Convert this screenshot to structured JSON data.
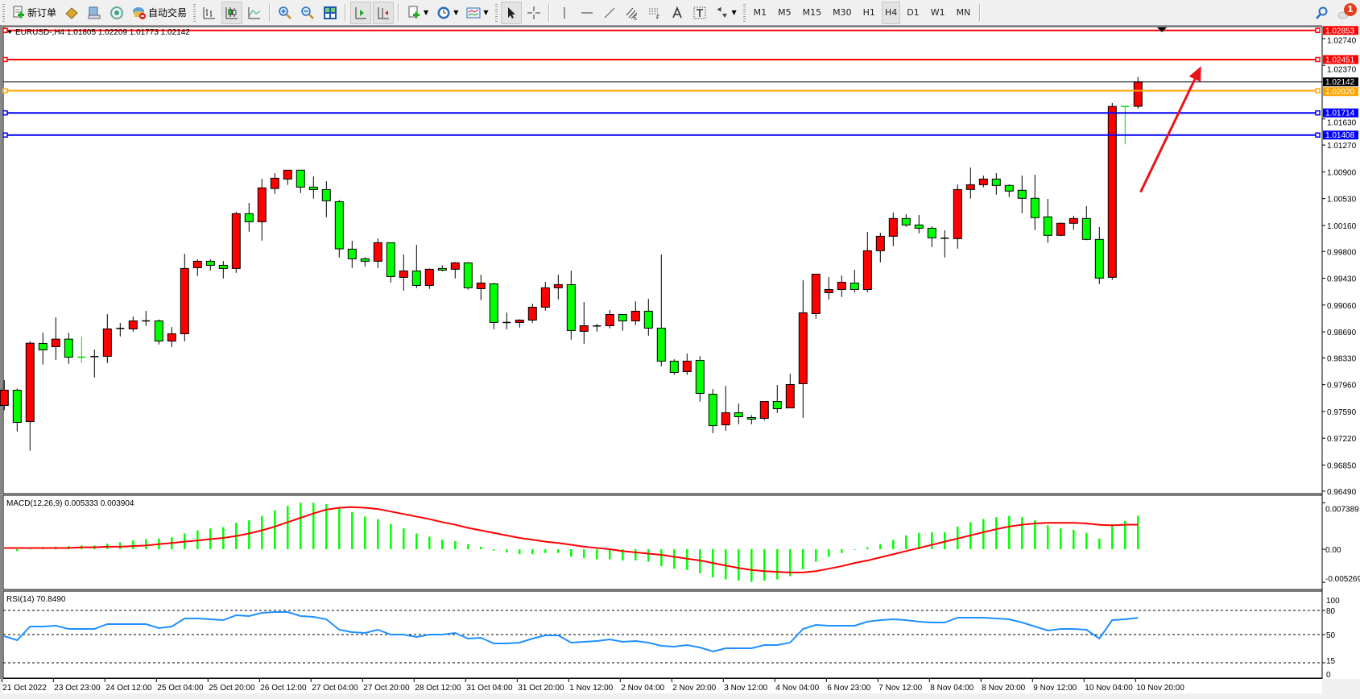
{
  "toolbar": {
    "new_order_label": "新订单",
    "auto_trading_label": "自动交易",
    "timeframes": [
      "M1",
      "M5",
      "M15",
      "M30",
      "H1",
      "H4",
      "D1",
      "W1",
      "MN"
    ],
    "active_timeframe": "H4",
    "notification_count": "1",
    "icons": [
      "new-order-icon",
      "metaeditor-icon",
      "market-watch-icon",
      "signals-icon",
      "auto-trading-icon",
      "bar-chart-icon",
      "candlestick-icon",
      "line-chart-icon",
      "zoom-in-icon",
      "zoom-out-icon",
      "tile-windows-icon",
      "auto-scroll-icon",
      "chart-shift-icon",
      "indicators-icon",
      "periods-icon",
      "templates-icon",
      "cursor-icon",
      "crosshair-icon",
      "vertical-line-icon",
      "horizontal-line-icon",
      "trendline-icon",
      "equidistant-channel-icon",
      "fibonacci-icon",
      "text-icon",
      "text-label-icon",
      "arrows-icon",
      "search-icon",
      "notification-icon"
    ]
  },
  "chart_data": {
    "type": "candlestick",
    "title": "EURUSD-,H4  1.01805 1.02209 1.01773 1.02142",
    "symbol": "EURUSD-",
    "timeframe": "H4",
    "ohlc_columns": [
      "open",
      "high",
      "low",
      "close"
    ],
    "colors": {
      "bull": "#ff0000",
      "bear": "#00ff00",
      "outline": "#000000",
      "background": "#ffffff"
    },
    "price_axis_ticks": [
      "1.02740",
      "1.02370",
      "1.01630",
      "1.01270",
      "1.00900",
      "1.00530",
      "1.00160",
      "0.99800",
      "0.99430",
      "0.99060",
      "0.98690",
      "0.98330",
      "0.97960",
      "0.97590",
      "0.97220",
      "0.96850",
      "0.96490"
    ],
    "price_range": [
      0.9649,
      1.02853
    ],
    "time_labels": [
      "21 Oct 2022",
      "23 Oct 23:00",
      "24 Oct 12:00",
      "25 Oct 04:00",
      "25 Oct 20:00",
      "26 Oct 12:00",
      "27 Oct 04:00",
      "27 Oct 20:00",
      "28 Oct 12:00",
      "31 Oct 04:00",
      "31 Oct 20:00",
      "1 Nov 12:00",
      "2 Nov 04:00",
      "2 Nov 20:00",
      "3 Nov 12:00",
      "4 Nov 04:00",
      "6 Nov 23:00",
      "7 Nov 12:00",
      "8 Nov 04:00",
      "8 Nov 20:00",
      "9 Nov 12:00",
      "10 Nov 04:00",
      "10 Nov 20:00"
    ],
    "time_label_every_n_bars": 4,
    "candles": [
      [
        0.97673,
        0.98025,
        0.97606,
        0.97884
      ],
      [
        0.97884,
        0.97906,
        0.97313,
        0.97439
      ],
      [
        0.9745,
        0.98563,
        0.97049,
        0.98533
      ],
      [
        0.9853,
        0.98678,
        0.98237,
        0.98441
      ],
      [
        0.98485,
        0.98889,
        0.98303,
        0.98589
      ],
      [
        0.98589,
        0.98678,
        0.98248,
        0.9834
      ],
      [
        0.98341,
        0.98622,
        0.98259,
        0.9834
      ],
      [
        0.98348,
        0.98444,
        0.98058,
        0.98348
      ],
      [
        0.98352,
        0.98934,
        0.98259,
        0.9873
      ],
      [
        0.98737,
        0.98812,
        0.98626,
        0.98737
      ],
      [
        0.9873,
        0.98901,
        0.98693,
        0.98841
      ],
      [
        0.98841,
        0.98979,
        0.98771,
        0.98841
      ],
      [
        0.98841,
        0.9886,
        0.98515,
        0.98563
      ],
      [
        0.98563,
        0.98756,
        0.98481,
        0.98663
      ],
      [
        0.98663,
        0.99769,
        0.98559,
        0.99565
      ],
      [
        0.99576,
        0.99691,
        0.99461,
        0.99665
      ],
      [
        0.99665,
        0.99691,
        0.99539,
        0.99609
      ],
      [
        0.99609,
        0.99669,
        0.99427,
        0.99565
      ],
      [
        0.99565,
        1.00348,
        0.99505,
        1.00322
      ],
      [
        1.00322,
        1.0047,
        1.00073,
        1.0021
      ],
      [
        1.0021,
        1.00804,
        0.99951,
        1.00678
      ],
      [
        1.0067,
        1.00882,
        1.00596,
        1.00811
      ],
      [
        1.008,
        1.00923,
        1.00719,
        1.00923
      ],
      [
        1.00923,
        1.00923,
        1.00607,
        1.00689
      ],
      [
        1.00689,
        1.00837,
        1.00529,
        1.00655
      ],
      [
        1.00655,
        1.0077,
        1.00273,
        1.005
      ],
      [
        1.00488,
        1.00511,
        0.99717,
        0.99836
      ],
      [
        0.99832,
        0.99947,
        0.99572,
        0.99698
      ],
      [
        0.99698,
        0.9972,
        0.99594,
        0.99665
      ],
      [
        0.99665,
        0.9998,
        0.99572,
        0.99921
      ],
      [
        0.99921,
        0.99921,
        0.99372,
        0.99453
      ],
      [
        0.99442,
        0.99758,
        0.9926,
        0.99531
      ],
      [
        0.99531,
        0.99891,
        0.99294,
        0.99331
      ],
      [
        0.99331,
        0.99565,
        0.99283,
        0.99554
      ],
      [
        0.99565,
        0.99609,
        0.99528,
        0.99542
      ],
      [
        0.99554,
        0.99654,
        0.99427,
        0.99643
      ],
      [
        0.99643,
        0.99654,
        0.99272,
        0.99298
      ],
      [
        0.99286,
        0.99479,
        0.99127,
        0.99364
      ],
      [
        0.99353,
        0.99364,
        0.98726,
        0.98819
      ],
      [
        0.98819,
        0.98956,
        0.98726,
        0.98819
      ],
      [
        0.98819,
        0.98864,
        0.98748,
        0.98852
      ],
      [
        0.98852,
        0.99079,
        0.98815,
        0.9903
      ],
      [
        0.9903,
        0.99379,
        0.98982,
        0.99298
      ],
      [
        0.99298,
        0.99479,
        0.99138,
        0.99342
      ],
      [
        0.99342,
        0.99535,
        0.98582,
        0.98708
      ],
      [
        0.98697,
        0.99101,
        0.98526,
        0.98774
      ],
      [
        0.98771,
        0.988,
        0.98693,
        0.98771
      ],
      [
        0.98774,
        0.9899,
        0.98737,
        0.9893
      ],
      [
        0.9893,
        0.9893,
        0.98704,
        0.98841
      ],
      [
        0.98841,
        0.99112,
        0.98782,
        0.98975
      ],
      [
        0.98975,
        0.99145,
        0.98637,
        0.98741
      ],
      [
        0.98741,
        0.99758,
        0.98214,
        0.98285
      ],
      [
        0.98285,
        0.98311,
        0.98096,
        0.98129
      ],
      [
        0.9814,
        0.98389,
        0.98096,
        0.98285
      ],
      [
        0.98296,
        0.98355,
        0.97725,
        0.9784
      ],
      [
        0.97828,
        0.97899,
        0.9729,
        0.97394
      ],
      [
        0.97405,
        0.97943,
        0.97324,
        0.97572
      ],
      [
        0.97572,
        0.97699,
        0.97413,
        0.97517
      ],
      [
        0.97506,
        0.97539,
        0.97413,
        0.97483
      ],
      [
        0.97495,
        0.97728,
        0.97469,
        0.97728
      ],
      [
        0.97728,
        0.97955,
        0.97569,
        0.97628
      ],
      [
        0.97639,
        0.9811,
        0.97639,
        0.97962
      ],
      [
        0.97973,
        0.99401,
        0.97502,
        0.98953
      ],
      [
        0.98941,
        0.99487,
        0.98871,
        0.99487
      ],
      [
        0.99231,
        0.99446,
        0.99138,
        0.99275
      ],
      [
        0.99275,
        0.99468,
        0.99171,
        0.99375
      ],
      [
        0.99364,
        0.99546,
        0.99231,
        0.99275
      ],
      [
        0.99275,
        1.00069,
        0.99238,
        0.9981
      ],
      [
        0.9981,
        1.00058,
        0.9965,
        1.0001
      ],
      [
        1.0001,
        1.00336,
        0.99873,
        1.00255
      ],
      [
        1.00255,
        1.00314,
        1.0014,
        1.00166
      ],
      [
        1.00166,
        1.00303,
        1.00051,
        1.00121
      ],
      [
        1.00121,
        1.00147,
        0.99861,
        0.99988
      ],
      [
        0.99984,
        1.00092,
        0.99717,
        0.99984
      ],
      [
        0.99977,
        1.00726,
        0.99839,
        1.00655
      ],
      [
        1.00655,
        1.0096,
        1.00529,
        1.00722
      ],
      [
        1.00722,
        1.00848,
        1.00685,
        1.008
      ],
      [
        1.008,
        1.00882,
        1.00585,
        1.00711
      ],
      [
        1.00712,
        1.00727,
        1.00552,
        1.00634
      ],
      [
        1.00645,
        1.00849,
        1.0033,
        1.00534
      ],
      [
        1.00534,
        1.0086,
        1.00096,
        1.00267
      ],
      [
        1.00278,
        1.00526,
        0.99918,
        1.00022
      ],
      [
        1.00022,
        1.002,
        1.00011,
        1.00189
      ],
      [
        1.00189,
        1.00293,
        1.001,
        1.00255
      ],
      [
        1.00255,
        1.00426,
        0.99955,
        0.99966
      ],
      [
        0.99966,
        1.00137,
        0.9935,
        0.99432
      ],
      [
        0.99443,
        1.01851,
        0.9941,
        1.01803
      ],
      [
        1.01804,
        1.01804,
        1.01279,
        1.01803
      ],
      [
        1.01805,
        1.02209,
        1.01773,
        1.02142
      ]
    ],
    "bid_line": {
      "price": 1.02142,
      "label": "1.02142",
      "color": "#000000"
    },
    "horizontal_lines": [
      {
        "price": 1.02853,
        "label": "1.02853",
        "color": "#ff0000"
      },
      {
        "price": 1.02451,
        "label": "1.02451",
        "color": "#ff0000"
      },
      {
        "price": 1.0202,
        "label": "1.02020",
        "color": "#ffa500"
      },
      {
        "price": 1.01714,
        "label": "1.01714",
        "color": "#0000ff"
      },
      {
        "price": 1.01408,
        "label": "1.01408",
        "color": "#0000ff"
      }
    ],
    "annotation_arrow": {
      "color": "#e8141c",
      "from_bar": 88.2,
      "from_price": 1.0062,
      "to_bar": 92.9,
      "to_price": 1.0236
    },
    "macd": {
      "title": "MACD(12,26,9) 0.005333 0.003904",
      "axis_ticks": [
        "0.007389",
        "0.00",
        "-0.005269"
      ],
      "range": [
        -0.005269,
        0.007389
      ],
      "histogram_color": "#00ff00",
      "signal_color": "#ff0000",
      "histogram": [
        0.0001,
        -0.0003,
        0.0002,
        0.0003,
        0.0004,
        0.0005,
        0.0006,
        0.0006,
        0.0009,
        0.0011,
        0.0014,
        0.0016,
        0.0017,
        0.0019,
        0.0025,
        0.003,
        0.0033,
        0.0035,
        0.0042,
        0.0046,
        0.0053,
        0.0062,
        0.0069,
        0.0074,
        0.0074,
        0.0072,
        0.0066,
        0.0059,
        0.0052,
        0.0048,
        0.004,
        0.0033,
        0.0025,
        0.002,
        0.0015,
        0.0013,
        0.0008,
        0.0004,
        -0.0002,
        -0.0005,
        -0.0008,
        -0.0008,
        -0.0006,
        -0.0006,
        -0.0012,
        -0.0014,
        -0.0016,
        -0.0016,
        -0.0018,
        -0.0018,
        -0.002,
        -0.0027,
        -0.0031,
        -0.0033,
        -0.0038,
        -0.0045,
        -0.0048,
        -0.005,
        -0.0052,
        -0.005,
        -0.0048,
        -0.0043,
        -0.0032,
        -0.002,
        -0.0012,
        -0.0006,
        -0.0001,
        0.0003,
        0.0008,
        0.0015,
        0.0022,
        0.0026,
        0.0027,
        0.0027,
        0.0036,
        0.0043,
        0.0048,
        0.0051,
        0.0053,
        0.0051,
        0.0046,
        0.0038,
        0.0033,
        0.0031,
        0.0026,
        0.0017,
        0.004,
        0.0045,
        0.005333
      ],
      "signal": [
        0.0002,
        0.0002,
        0.0002,
        0.0002,
        0.0002,
        0.0002,
        0.0003,
        0.0003,
        0.0004,
        0.0004,
        0.0005,
        0.0006,
        0.0008,
        0.001,
        0.0012,
        0.0014,
        0.0016,
        0.0018,
        0.0021,
        0.0025,
        0.003,
        0.0036,
        0.0043,
        0.005,
        0.0057,
        0.0063,
        0.0066,
        0.0067,
        0.0066,
        0.0064,
        0.006,
        0.0056,
        0.0052,
        0.0048,
        0.0043,
        0.0039,
        0.0034,
        0.003,
        0.0026,
        0.0022,
        0.0018,
        0.0015,
        0.0012,
        0.001,
        0.0007,
        0.0004,
        0.0002,
        0.0,
        -0.0003,
        -0.0005,
        -0.0007,
        -0.0009,
        -0.0012,
        -0.0015,
        -0.0018,
        -0.0022,
        -0.0026,
        -0.003,
        -0.0033,
        -0.0035,
        -0.0036,
        -0.0037,
        -0.0037,
        -0.0035,
        -0.0031,
        -0.0027,
        -0.0022,
        -0.0018,
        -0.0013,
        -0.0008,
        -0.0003,
        0.0002,
        0.0007,
        0.0012,
        0.0017,
        0.0022,
        0.0027,
        0.0032,
        0.0036,
        0.0039,
        0.0041,
        0.0042,
        0.0042,
        0.0042,
        0.0041,
        0.0039,
        0.0038,
        0.0039,
        0.003904
      ]
    },
    "rsi": {
      "title": "RSI(14) 70.8490",
      "axis_ticks": [
        "100",
        "80",
        "50",
        "15",
        "0"
      ],
      "levels": [
        80,
        50,
        15
      ],
      "range": [
        0,
        100
      ],
      "color": "#1e90ff",
      "values": [
        48,
        43,
        60,
        60,
        61,
        57,
        57,
        57,
        63,
        63,
        63,
        63,
        58,
        60,
        70,
        70,
        69,
        68,
        74,
        73,
        77,
        78,
        78,
        73,
        72,
        69,
        56,
        53,
        52,
        56,
        50,
        50,
        47,
        50,
        50,
        52,
        45,
        46,
        39,
        39,
        40,
        45,
        49,
        49,
        40,
        41,
        42,
        44,
        41,
        42,
        40,
        36,
        35,
        37,
        34,
        29,
        33,
        33,
        33,
        37,
        37,
        40,
        57,
        62,
        61,
        61,
        61,
        66,
        68,
        69,
        68,
        66,
        65,
        65,
        71,
        71,
        71,
        70,
        69,
        65,
        60,
        55,
        57,
        57,
        56,
        45,
        68,
        69,
        70.849
      ]
    }
  }
}
